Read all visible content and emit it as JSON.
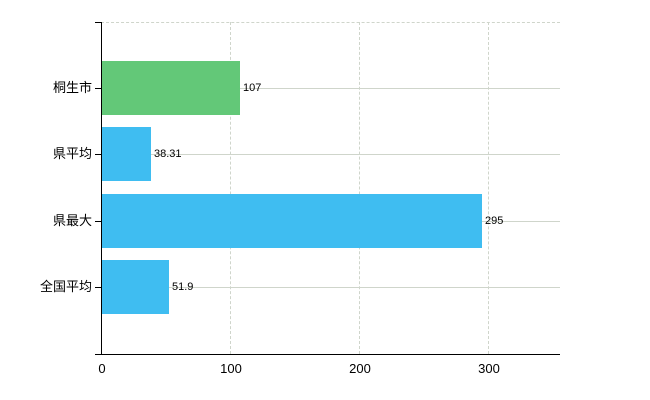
{
  "chart_data": {
    "type": "bar",
    "orientation": "horizontal",
    "title": "",
    "categories": [
      "桐生市",
      "県平均",
      "県最大",
      "全国平均"
    ],
    "values": [
      107,
      38.31,
      295,
      51.9
    ],
    "value_labels": [
      "107",
      "38.31",
      "295",
      "51.9"
    ],
    "bar_colors": [
      "#63c878",
      "#3fbdf1",
      "#3fbdf1",
      "#3fbdf1"
    ],
    "x_axis": {
      "tick_labels": [
        "0",
        "100",
        "200",
        "300"
      ],
      "tick_values": [
        0,
        100,
        200,
        300
      ],
      "range": [
        0,
        356
      ]
    },
    "grid": {
      "vertical_style": "dashed",
      "horizontal_style": "solid",
      "top_border_style": "dashed"
    },
    "legend_position": "none"
  },
  "colors": {
    "background": "#ffffff",
    "axis": "#000000",
    "gridline": "#cfd5cb",
    "bar_blue": "#3fbdf1",
    "bar_green": "#63c878",
    "text": "#000000"
  }
}
